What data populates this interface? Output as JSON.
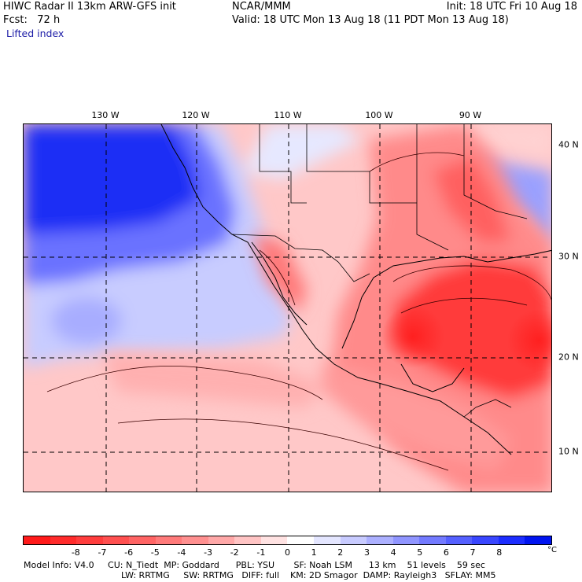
{
  "header": {
    "title": "HIWC Radar II 13km ARW-GFS init",
    "fcst": "Fcst:   72 h",
    "field": "Lifted index",
    "source": "NCAR/MMM",
    "init": "Init: 18 UTC Fri 10 Aug 18",
    "valid": "Valid: 18 UTC Mon 13 Aug 18 (11 PDT Mon 13 Aug 18)"
  },
  "axes": {
    "longitude_labels": [
      "130 W",
      "120 W",
      "110 W",
      "100 W",
      "90 W"
    ],
    "latitude_labels": [
      "40 N",
      "30 N",
      "20 N",
      "10 N"
    ]
  },
  "colorbar": {
    "ticks": [
      "-8",
      "-7",
      "-6",
      "-5",
      "-4",
      "-3",
      "-2",
      "-1",
      "0",
      "1",
      "2",
      "3",
      "4",
      "5",
      "6",
      "7",
      "8"
    ],
    "unit": "°C",
    "colors": [
      "#ff1a1a",
      "#ff2b2b",
      "#ff3d3d",
      "#ff5050",
      "#ff6464",
      "#ff7a7a",
      "#ff9090",
      "#ffa8a8",
      "#ffc4c4",
      "#ffe2e2",
      "#ffffff",
      "#e4e6ff",
      "#c8cbff",
      "#acb0ff",
      "#9095ff",
      "#737aff",
      "#5560ff",
      "#3946ff",
      "#1c2dff",
      "#0014f0"
    ]
  },
  "footer": {
    "line1": "Model Info: V4.0     CU: N_Tiedt  MP: Goddard      PBL: YSU       SF: Noah LSM      13 km    51 levels    59 sec",
    "line2": "LW: RRTMG     SW: RRTMG   DIFF: full    KM: 2D Smagor  DAMP: Rayleigh3   SFLAY: MM5"
  }
}
